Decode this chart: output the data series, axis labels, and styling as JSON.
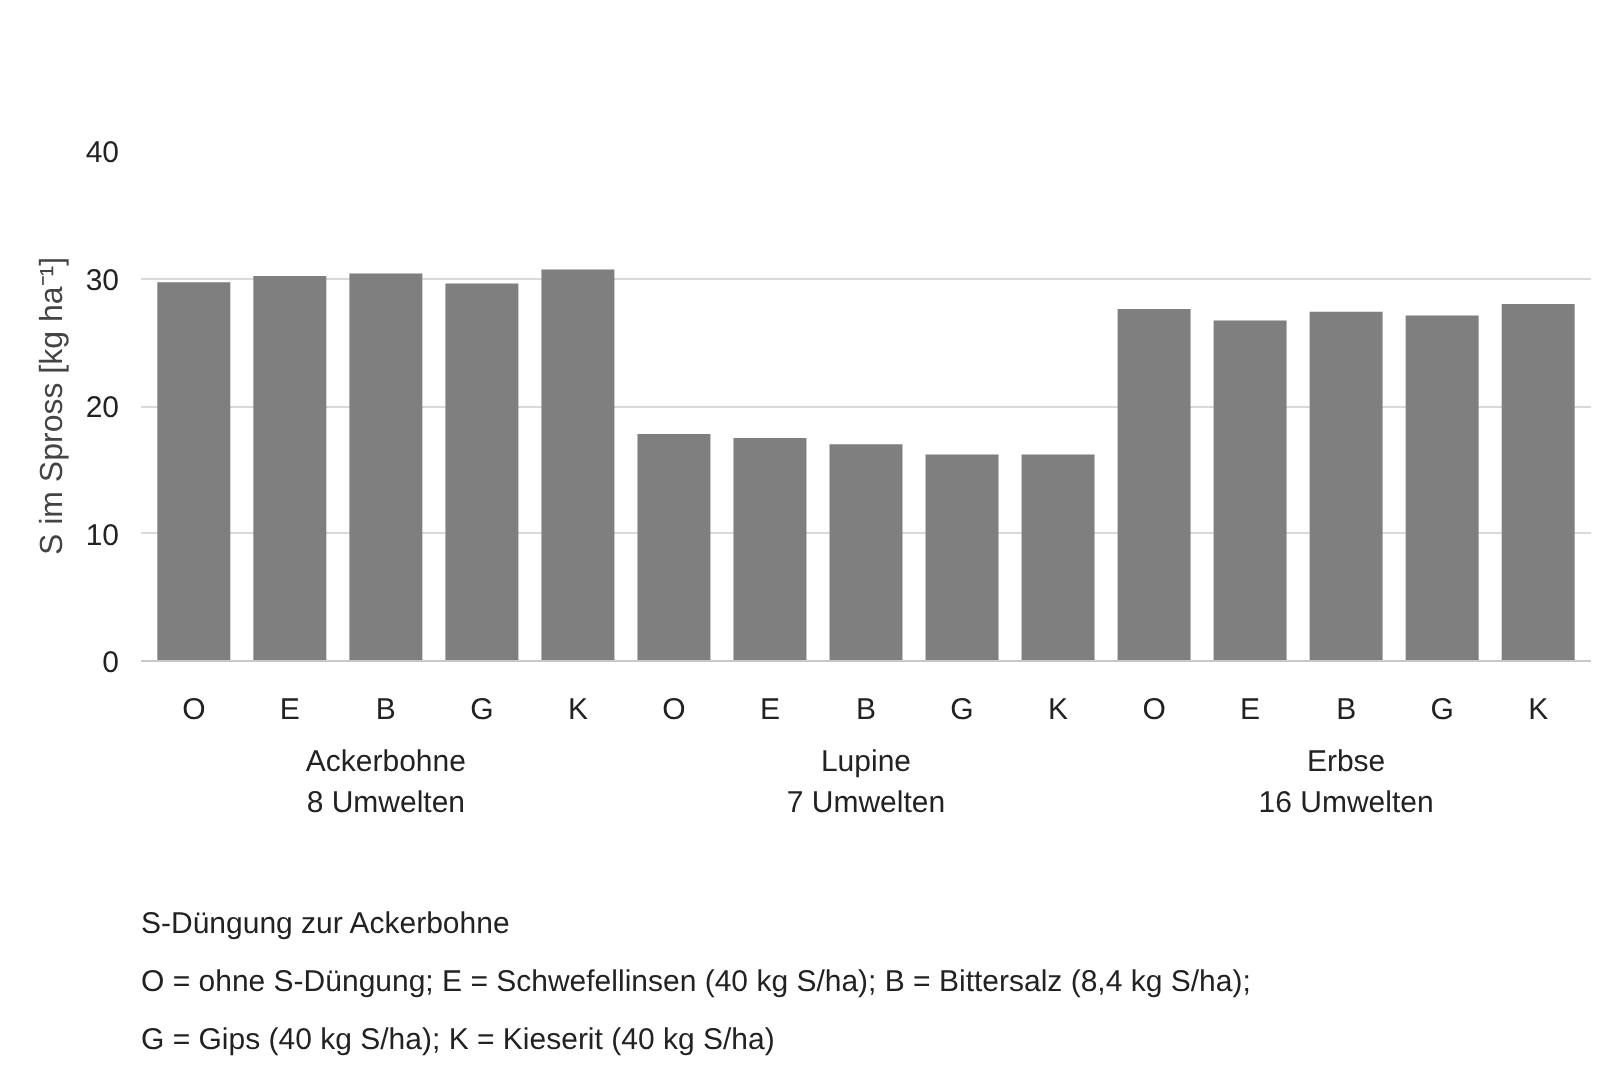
{
  "chart_data": {
    "type": "bar",
    "ylabel": "S im Spross [kg ha⁻¹]",
    "categories": [
      "O",
      "E",
      "B",
      "G",
      "K",
      "O",
      "E",
      "B",
      "G",
      "K",
      "O",
      "E",
      "B",
      "G",
      "K"
    ],
    "values": [
      29.7,
      30.2,
      30.4,
      29.6,
      30.7,
      17.8,
      17.5,
      17.0,
      16.2,
      16.2,
      27.6,
      26.7,
      27.4,
      27.1,
      28.0
    ],
    "color": "#7f7f7f",
    "ylim": [
      0,
      40
    ],
    "yticks": [
      0,
      10,
      20,
      30,
      40
    ],
    "grid": "y",
    "annotations": [
      "Ackerbohne\n8 Umwelten",
      "Lupine\n7 Umwelten",
      "Erbse\n16 Umwelten",
      "S-Düngung zur Ackerbohne\nO = ohne S-Düngung; E = Schwefellinsen (40 kg S/ha); B = Bittersalz (8,4 kg S/ha);\nG = Gips (40 kg S/ha); K = Kieserit (40 kg S/ha)"
    ]
  }
}
